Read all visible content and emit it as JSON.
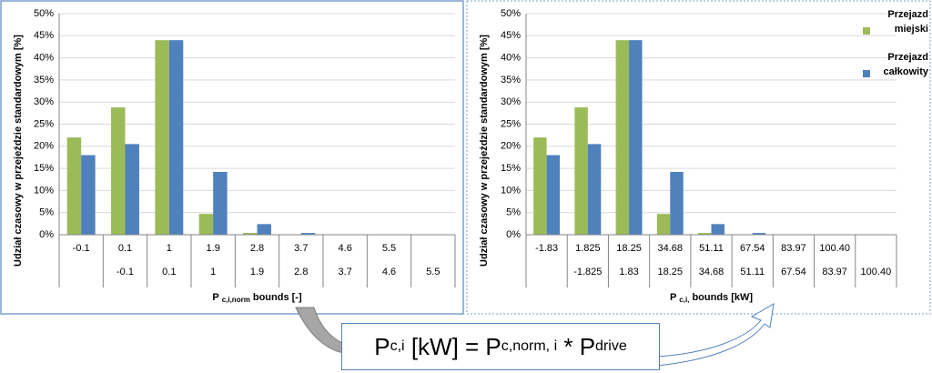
{
  "chart_data": [
    {
      "type": "bar",
      "y_label": "Udział czasowy w przejeździe standardowym [%]",
      "x_label": {
        "base": "P",
        "sub": "c,i,norm",
        "rest": " bounds [-]"
      },
      "categories": [
        "-0.1",
        "0.1",
        "1",
        "1.9",
        "2.8",
        "3.7",
        "4.6",
        "5.5",
        null
      ],
      "categories_lower": [
        null,
        "-0.1",
        "0.1",
        "1",
        "1.9",
        "2.8",
        "3.7",
        "4.6",
        "5.5"
      ],
      "series": [
        {
          "name": "Przejazd miejski",
          "color": "#9bbb59",
          "values": [
            22,
            28.8,
            44,
            4.7,
            0.4,
            0.1,
            0.05,
            0.02,
            0.02
          ]
        },
        {
          "name": "Przejazd całkowity",
          "color": "#4f81bd",
          "values": [
            18,
            20.5,
            44,
            14.2,
            2.4,
            0.4,
            0.1,
            0.05,
            0.05
          ]
        }
      ],
      "ylim": [
        0,
        50
      ],
      "yticks": [
        {
          "value": 0,
          "label": "0%"
        },
        {
          "value": 5,
          "label": "5%"
        },
        {
          "value": 10,
          "label": "10%"
        },
        {
          "value": 15,
          "label": "15%"
        },
        {
          "value": 20,
          "label": "20%"
        },
        {
          "value": 25,
          "label": "25%"
        },
        {
          "value": 30,
          "label": "30%"
        },
        {
          "value": 35,
          "label": "35%"
        },
        {
          "value": 40,
          "label": "40%"
        },
        {
          "value": 45,
          "label": "45%"
        },
        {
          "value": 50,
          "label": "50%"
        }
      ],
      "legend": false
    },
    {
      "type": "bar",
      "y_label": "Udział czasowy w przejeździe standardowym [%]",
      "x_label": {
        "base": "P",
        "sub": "c,i,",
        "rest": " bounds [kW]"
      },
      "categories": [
        "-1.83",
        "1.825",
        "18.25",
        "34.68",
        "51.11",
        "67.54",
        "83.97",
        "100.40",
        null
      ],
      "categories_lower": [
        null,
        "-1.825",
        "1.83",
        "18.25",
        "34.68",
        "51.11",
        "67.54",
        "83.97",
        "100.40"
      ],
      "series": [
        {
          "name": "Przejazd miejski",
          "color": "#9bbb59",
          "values": [
            22,
            28.8,
            44,
            4.7,
            0.4,
            0.1,
            0.05,
            0.02,
            0.02
          ]
        },
        {
          "name": "Przejazd całkowity",
          "color": "#4f81bd",
          "values": [
            18,
            20.5,
            44,
            14.2,
            2.4,
            0.4,
            0.1,
            0.05,
            0.05
          ]
        }
      ],
      "ylim": [
        0,
        50
      ],
      "yticks": [
        {
          "value": 0,
          "label": "0%"
        },
        {
          "value": 5,
          "label": "5%"
        },
        {
          "value": 10,
          "label": "10%"
        },
        {
          "value": 15,
          "label": "15%"
        },
        {
          "value": 20,
          "label": "20%"
        },
        {
          "value": 25,
          "label": "25%"
        },
        {
          "value": 30,
          "label": "30%"
        },
        {
          "value": 35,
          "label": "35%"
        },
        {
          "value": 40,
          "label": "40%"
        },
        {
          "value": 45,
          "label": "45%"
        },
        {
          "value": 50,
          "label": "50%"
        }
      ],
      "legend": true
    }
  ],
  "formula": {
    "t1": "P",
    "s1": "c,i",
    "t2": " [kW] = P",
    "s2": "c,norm, i",
    "t3": " * P",
    "s3": "drive"
  }
}
